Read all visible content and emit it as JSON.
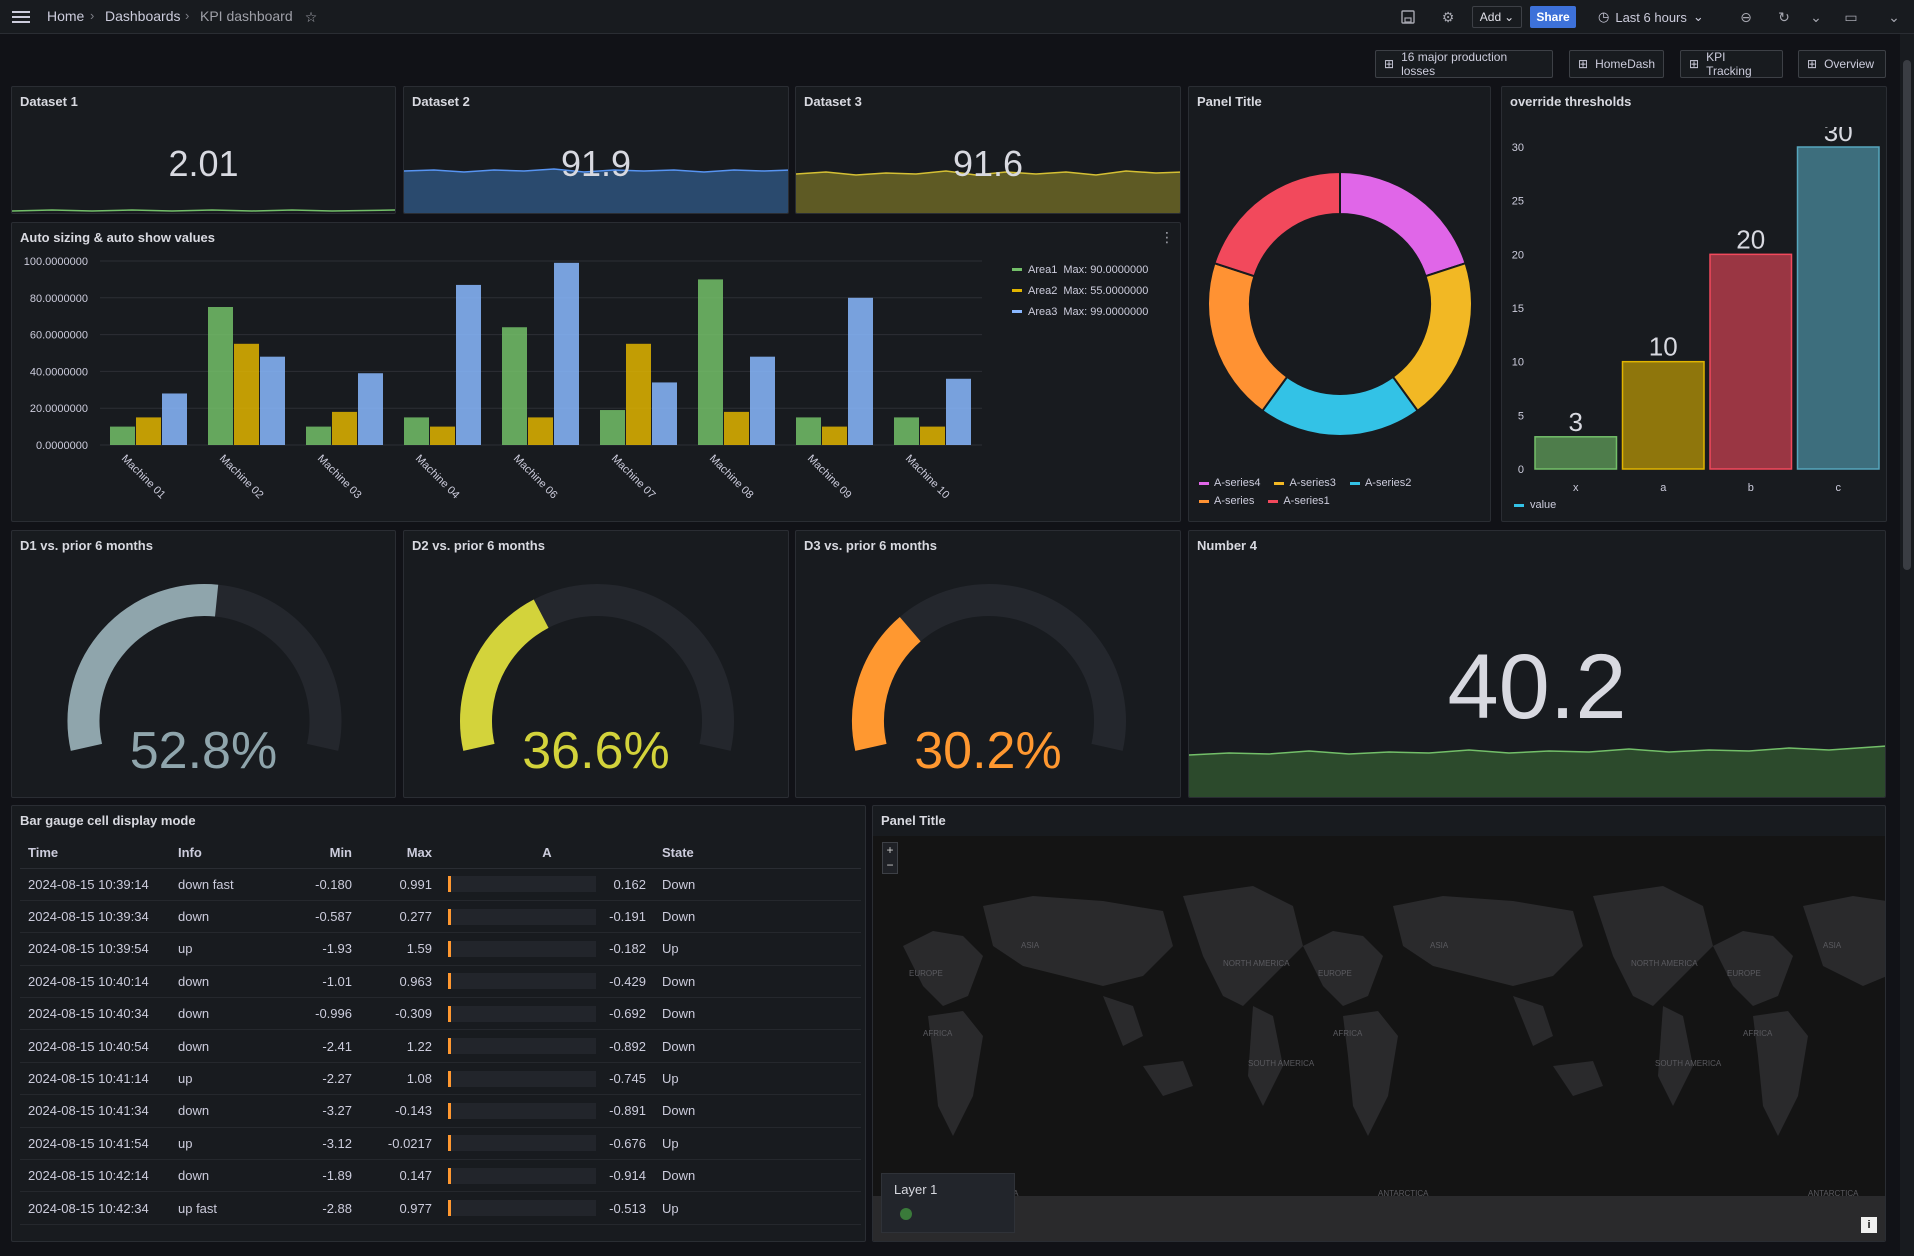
{
  "topbar": {
    "crumbs": [
      "Home",
      "Dashboards",
      "KPI dashboard"
    ],
    "add_label": "Add",
    "share_label": "Share",
    "time_range": "Last 6 hours"
  },
  "links": [
    {
      "label": "16 major production losses"
    },
    {
      "label": "HomeDash"
    },
    {
      "label": "KPI Tracking"
    },
    {
      "label": "Overview"
    }
  ],
  "stats": [
    {
      "title": "Dataset 1",
      "value": "2.01",
      "color": "#73bf69"
    },
    {
      "title": "Dataset 2",
      "value": "91.9",
      "color": "#5794f2"
    },
    {
      "title": "Dataset 3",
      "value": "91.6",
      "color": "#fade2a"
    }
  ],
  "barchart": {
    "title": "Auto sizing & auto show values",
    "legend": [
      {
        "name": "Area1",
        "max": "Max: 90.0000000",
        "color": "#73bf69"
      },
      {
        "name": "Area2",
        "max": "Max: 55.0000000",
        "color": "#e0b400"
      },
      {
        "name": "Area3",
        "max": "Max: 99.0000000",
        "color": "#8ab8ff"
      }
    ],
    "yticks": [
      "100.0000000",
      "80.0000000",
      "60.0000000",
      "40.0000000",
      "20.0000000",
      "0.0000000"
    ]
  },
  "donut": {
    "title": "Panel Title",
    "legend": [
      {
        "name": "A-series4",
        "color": "#e066e8"
      },
      {
        "name": "A-series3",
        "color": "#f2b824"
      },
      {
        "name": "A-series2",
        "color": "#33c2e6"
      },
      {
        "name": "A-series",
        "color": "#ff9233"
      },
      {
        "name": "A-series1",
        "color": "#f2495c"
      }
    ]
  },
  "thresholds": {
    "title": "override thresholds",
    "legend": "value",
    "yticks": [
      "30",
      "25",
      "20",
      "15",
      "10",
      "5",
      "0"
    ]
  },
  "gauges": [
    {
      "title": "D1 vs. prior 6 months",
      "value": "52.8%",
      "color": "#8fa5ac"
    },
    {
      "title": "D2 vs. prior 6 months",
      "value": "36.6%",
      "color": "#d3d33b"
    },
    {
      "title": "D3 vs. prior 6 months",
      "value": "30.2%",
      "color": "#ff9830"
    }
  ],
  "number4": {
    "title": "Number 4",
    "value": "40.2"
  },
  "table": {
    "title": "Bar gauge cell display mode",
    "headers": [
      "Time",
      "Info",
      "Min",
      "Max",
      "A",
      "State"
    ],
    "rows": [
      {
        "time": "2024-08-15 10:39:14",
        "info": "down fast",
        "min": "-0.180",
        "max": "0.991",
        "a": "0.162",
        "state": "Down"
      },
      {
        "time": "2024-08-15 10:39:34",
        "info": "down",
        "min": "-0.587",
        "max": "0.277",
        "a": "-0.191",
        "state": "Down"
      },
      {
        "time": "2024-08-15 10:39:54",
        "info": "up",
        "min": "-1.93",
        "max": "1.59",
        "a": "-0.182",
        "state": "Up"
      },
      {
        "time": "2024-08-15 10:40:14",
        "info": "down",
        "min": "-1.01",
        "max": "0.963",
        "a": "-0.429",
        "state": "Down"
      },
      {
        "time": "2024-08-15 10:40:34",
        "info": "down",
        "min": "-0.996",
        "max": "-0.309",
        "a": "-0.692",
        "state": "Down"
      },
      {
        "time": "2024-08-15 10:40:54",
        "info": "down",
        "min": "-2.41",
        "max": "1.22",
        "a": "-0.892",
        "state": "Down"
      },
      {
        "time": "2024-08-15 10:41:14",
        "info": "up",
        "min": "-2.27",
        "max": "1.08",
        "a": "-0.745",
        "state": "Up"
      },
      {
        "time": "2024-08-15 10:41:34",
        "info": "down",
        "min": "-3.27",
        "max": "-0.143",
        "a": "-0.891",
        "state": "Down"
      },
      {
        "time": "2024-08-15 10:41:54",
        "info": "up",
        "min": "-3.12",
        "max": "-0.0217",
        "a": "-0.676",
        "state": "Up"
      },
      {
        "time": "2024-08-15 10:42:14",
        "info": "down",
        "min": "-1.89",
        "max": "0.147",
        "a": "-0.914",
        "state": "Down"
      },
      {
        "time": "2024-08-15 10:42:34",
        "info": "up fast",
        "min": "-2.88",
        "max": "0.977",
        "a": "-0.513",
        "state": "Up"
      }
    ]
  },
  "map": {
    "title": "Panel Title",
    "layer": "Layer 1",
    "zoom_in": "+",
    "zoom_out": "−",
    "labels": [
      "EUROPE",
      "ASIA",
      "AFRICA",
      "NORTH AMERICA",
      "SOUTH AMERICA",
      "ANTARCTICA"
    ],
    "info": "i"
  },
  "chart_data": [
    {
      "type": "bar",
      "title": "Auto sizing & auto show values",
      "categories": [
        "Machine 01",
        "Machine 02",
        "Machine 03",
        "Machine 04",
        "Machine 06",
        "Machine 07",
        "Machine 08",
        "Machine 09",
        "Machine 10"
      ],
      "series": [
        {
          "name": "Area1",
          "values": [
            10,
            75,
            10,
            15,
            64,
            19,
            90,
            15,
            15
          ]
        },
        {
          "name": "Area2",
          "values": [
            15,
            55,
            18,
            10,
            15,
            55,
            18,
            10,
            10
          ]
        },
        {
          "name": "Area3",
          "values": [
            28,
            48,
            39,
            87,
            99,
            34,
            48,
            80,
            36
          ]
        }
      ],
      "ylim": [
        0,
        100
      ]
    },
    {
      "type": "pie",
      "title": "Panel Title",
      "categories": [
        "A-series4",
        "A-series3",
        "A-series2",
        "A-series",
        "A-series1"
      ],
      "values": [
        20,
        20,
        20,
        20,
        20
      ]
    },
    {
      "type": "bar",
      "title": "override thresholds",
      "categories": [
        "x",
        "a",
        "b",
        "c"
      ],
      "values": [
        3,
        10,
        20,
        30
      ],
      "colors": [
        "#73bf69",
        "#e0b400",
        "#f2495c",
        "#56a6bd"
      ],
      "ylim": [
        0,
        30
      ]
    },
    {
      "type": "gauge",
      "categories": [
        "D1 vs. prior 6 months",
        "D2 vs. prior 6 months",
        "D3 vs. prior 6 months"
      ],
      "values": [
        52.8,
        36.6,
        30.2
      ],
      "ylim": [
        0,
        100
      ]
    }
  ]
}
